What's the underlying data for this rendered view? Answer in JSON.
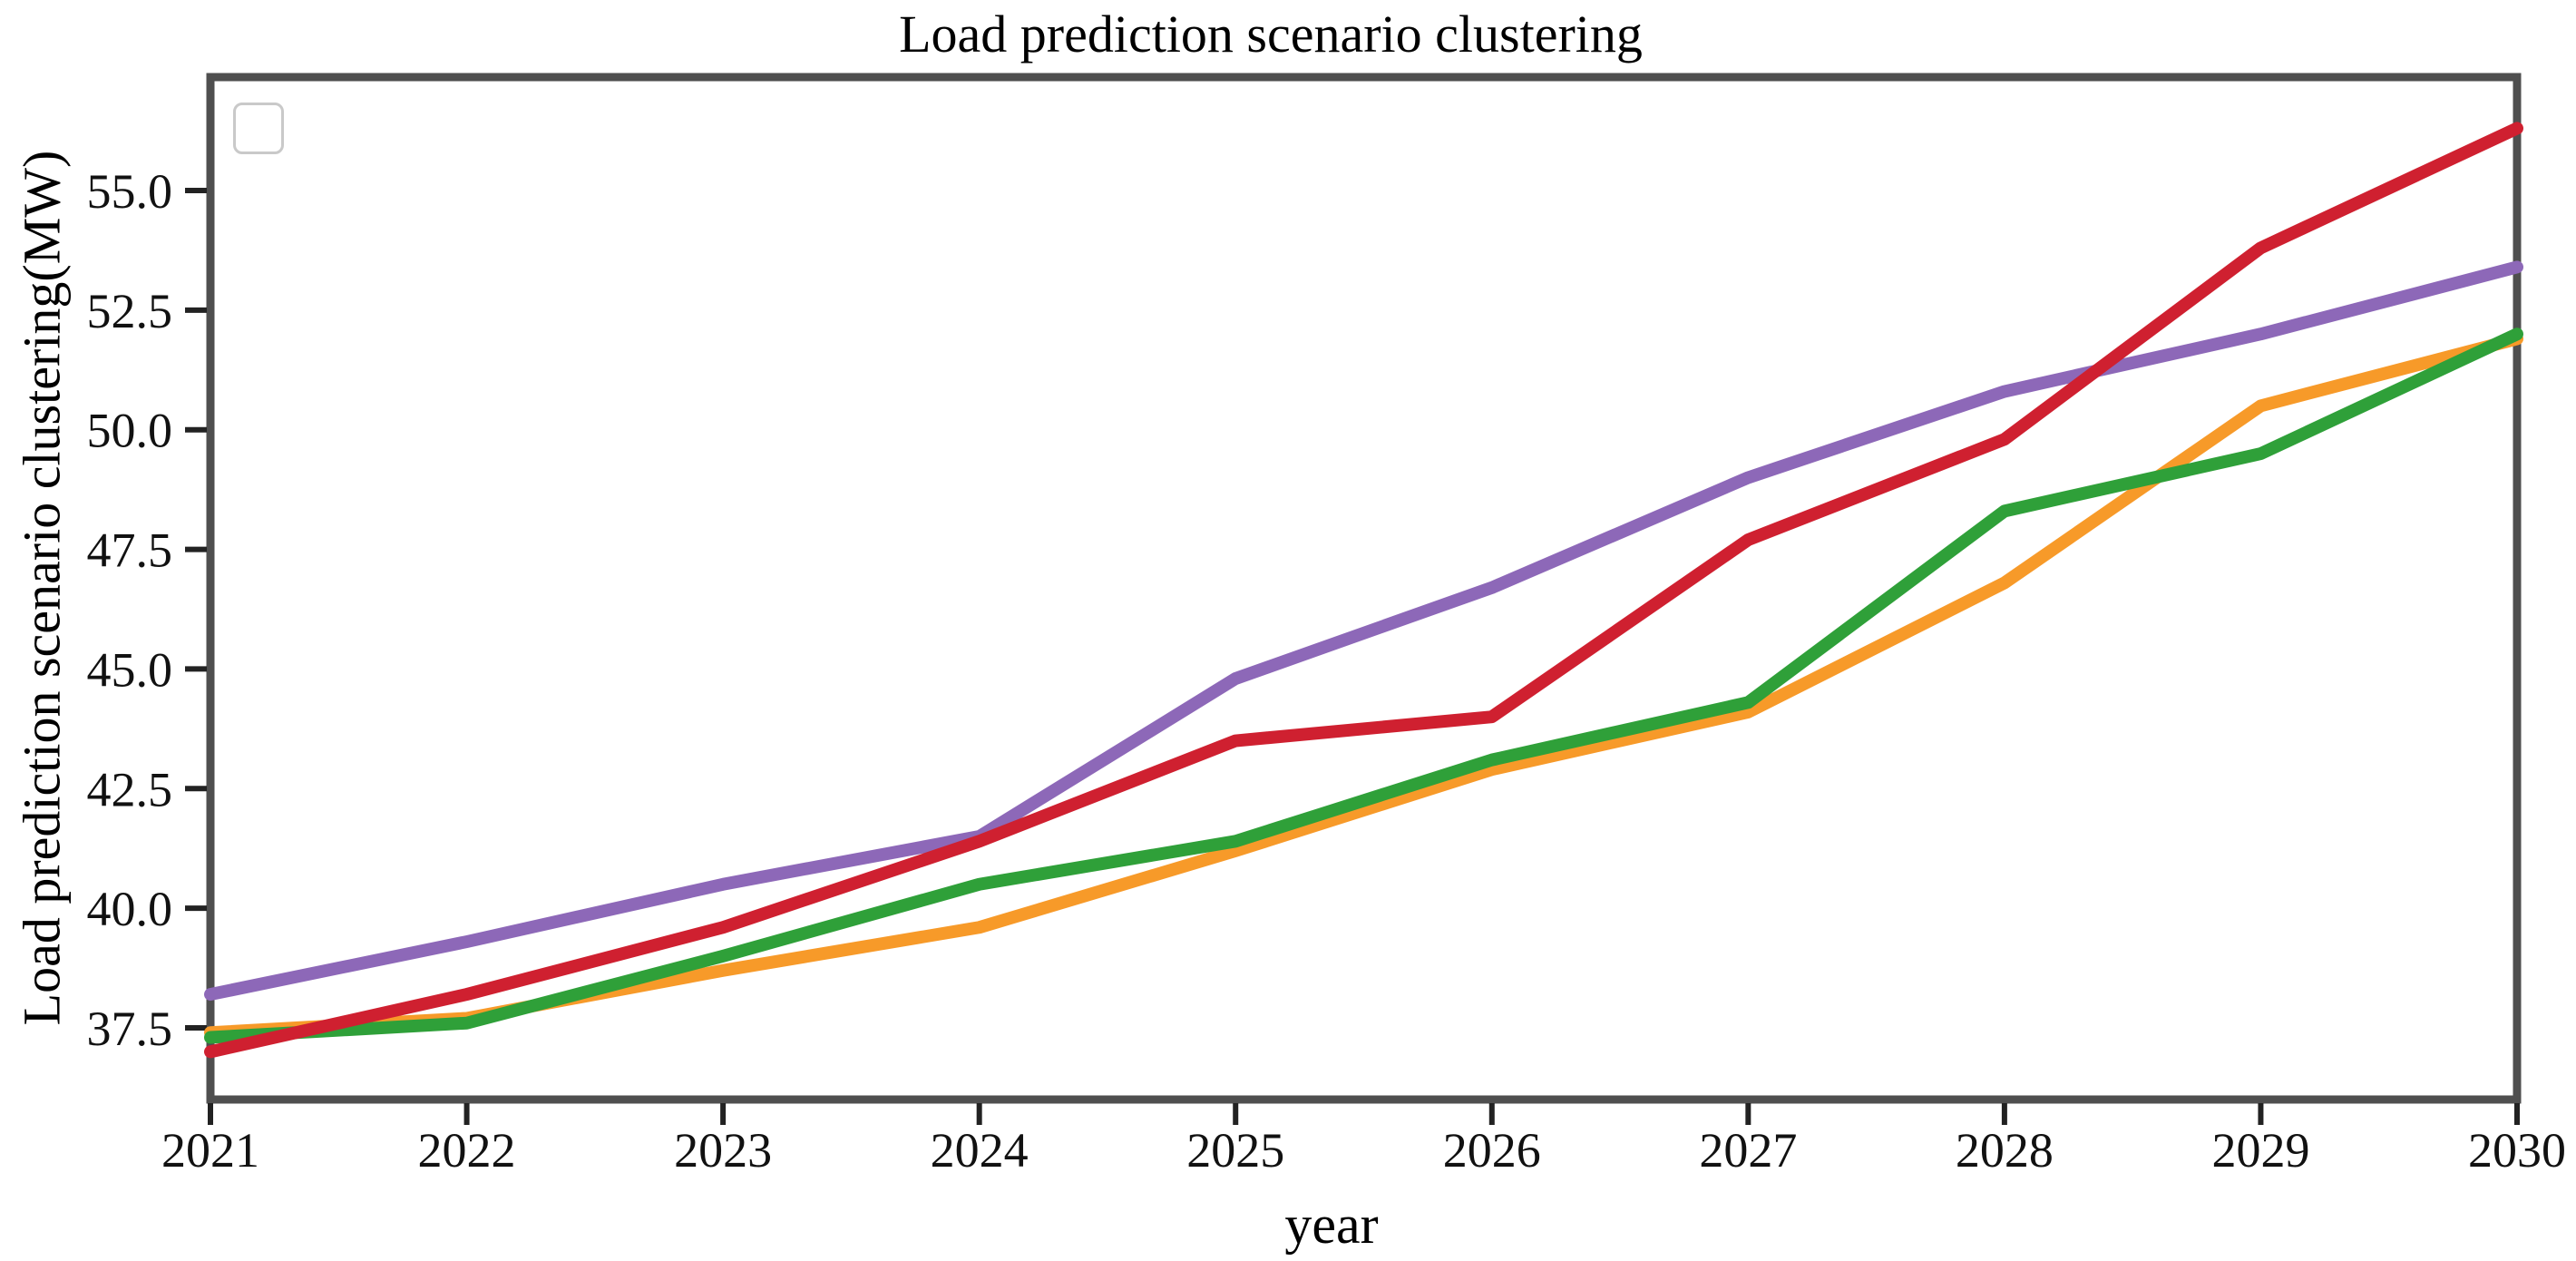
{
  "figure": {
    "title": "Load prediction scenario clustering",
    "xlabel": "year",
    "ylabel": "Load prediction scenario clustering(MW)"
  },
  "chart_data": {
    "type": "line",
    "title": "Load prediction scenario clustering",
    "xlabel": "year",
    "ylabel": "Load prediction scenario clustering(MW)",
    "categories": [
      2021,
      2022,
      2023,
      2024,
      2025,
      2026,
      2027,
      2028,
      2029,
      2030
    ],
    "x_tick_labels": [
      "2021",
      "2022",
      "2023",
      "2024",
      "2025",
      "2026",
      "2027",
      "2028",
      "2029",
      "2030"
    ],
    "y_tick_labels": [
      "37.5",
      "40.0",
      "42.5",
      "45.0",
      "47.5",
      "50.0",
      "52.5",
      "55.0"
    ],
    "xlim": [
      2021,
      2030
    ],
    "ylim": [
      36.0,
      57.4
    ],
    "grid": false,
    "legend": {
      "visible": true,
      "position": "upper-left",
      "entries": []
    },
    "series": [
      {
        "name": "orange",
        "color": "#f79a29",
        "values": [
          37.4,
          37.7,
          38.7,
          39.6,
          41.2,
          42.9,
          44.1,
          46.8,
          50.5,
          51.9
        ]
      },
      {
        "name": "green",
        "color": "#2fa039",
        "values": [
          37.3,
          37.6,
          39.0,
          40.5,
          41.4,
          43.1,
          44.3,
          48.3,
          49.5,
          52.0
        ]
      },
      {
        "name": "purple",
        "color": "#8d68b8",
        "values": [
          38.2,
          39.3,
          40.5,
          41.5,
          44.8,
          46.7,
          49.0,
          50.8,
          52.0,
          53.4
        ]
      },
      {
        "name": "crimson",
        "color": "#cf2030",
        "values": [
          37.0,
          38.2,
          39.6,
          41.4,
          43.5,
          44.0,
          47.7,
          49.8,
          53.8,
          56.3
        ]
      }
    ],
    "line_width": 14,
    "axis_color": "#4f4f4f",
    "tick_color": "#222222",
    "background": "#ffffff"
  }
}
